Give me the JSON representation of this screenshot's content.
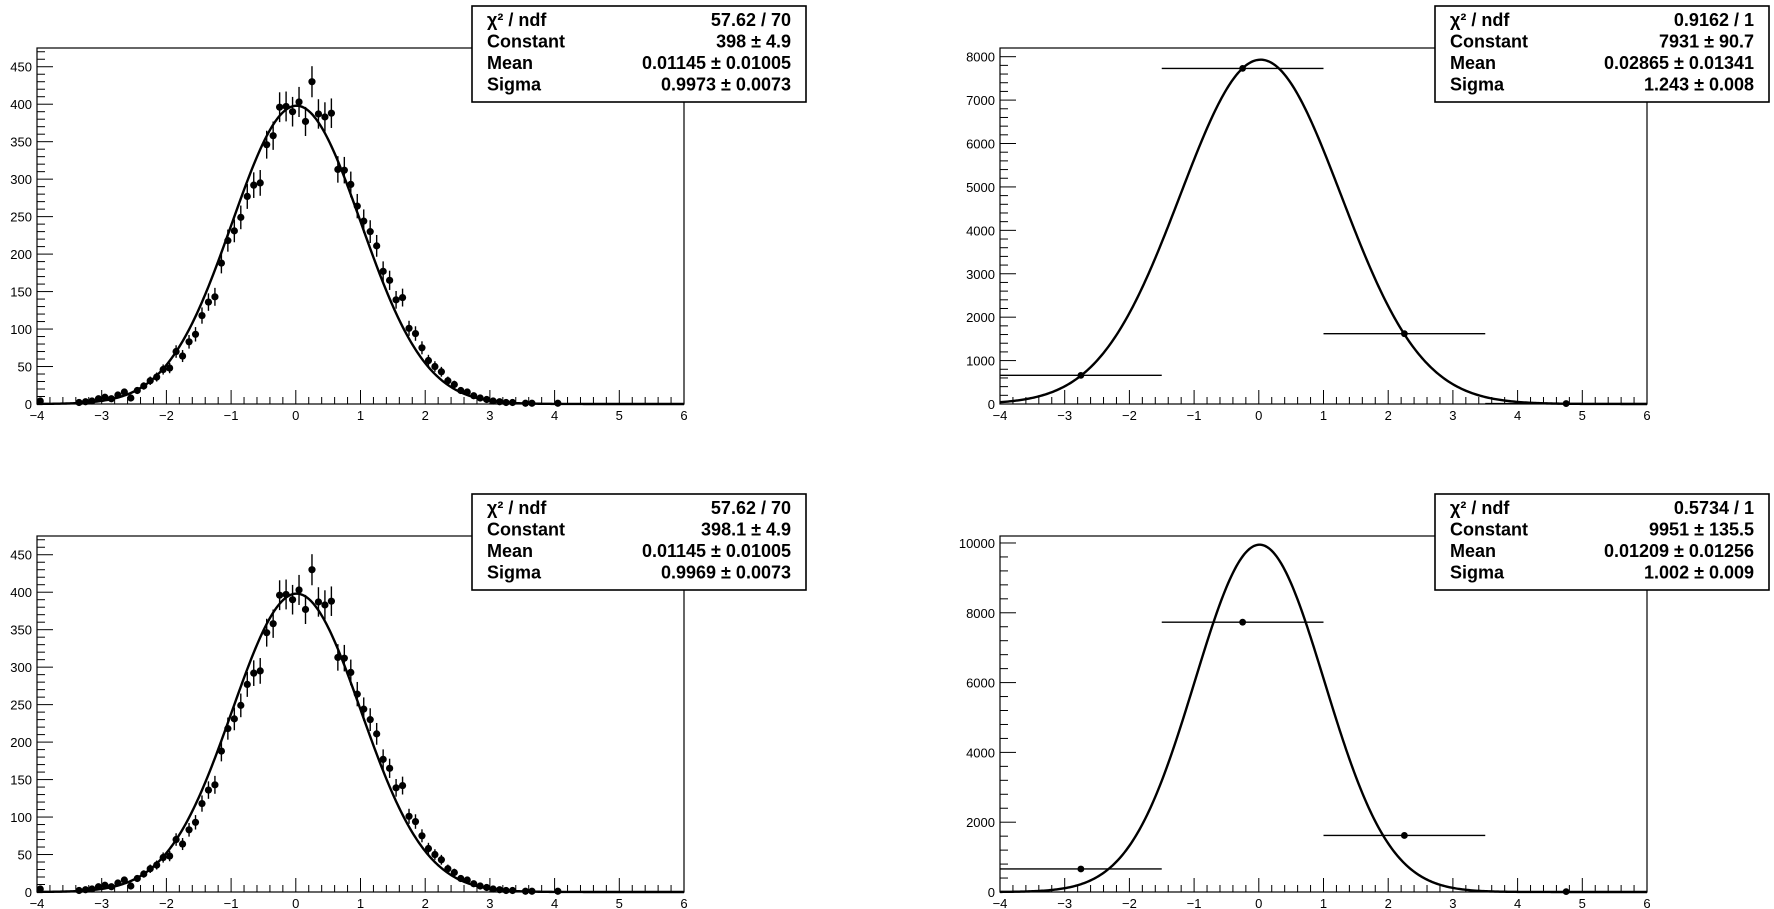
{
  "chart_data": [
    {
      "type": "scatter",
      "xlim": [
        -4,
        6
      ],
      "ylim": [
        0,
        475
      ],
      "xticks": [
        -4,
        -3,
        -2,
        -1,
        0,
        1,
        2,
        3,
        4,
        5,
        6
      ],
      "yticks": [
        0,
        50,
        100,
        150,
        200,
        250,
        300,
        350,
        400,
        450
      ],
      "fit": {
        "constant": 398,
        "mean": 0.01145,
        "sigma": 0.9973
      },
      "stats": [
        {
          "label": "χ² / ndf",
          "value": "57.62 / 70"
        },
        {
          "label": "Constant",
          "value": "398 ± 4.9"
        },
        {
          "label": "Mean",
          "value": "0.01145 ± 0.01005"
        },
        {
          "label": "Sigma",
          "value": "0.9973 ± 0.0073"
        }
      ],
      "points": [
        [
          -3.95,
          4
        ],
        [
          -3.35,
          2
        ],
        [
          -3.25,
          3
        ],
        [
          -3.15,
          4
        ],
        [
          -3.05,
          7
        ],
        [
          -2.95,
          9
        ],
        [
          -2.85,
          7
        ],
        [
          -2.75,
          12
        ],
        [
          -2.65,
          16
        ],
        [
          -2.55,
          8
        ],
        [
          -2.45,
          18
        ],
        [
          -2.35,
          24
        ],
        [
          -2.25,
          31
        ],
        [
          -2.15,
          36
        ],
        [
          -2.05,
          46
        ],
        [
          -1.95,
          48
        ],
        [
          -1.85,
          70
        ],
        [
          -1.75,
          64
        ],
        [
          -1.65,
          83
        ],
        [
          -1.55,
          93
        ],
        [
          -1.45,
          118
        ],
        [
          -1.35,
          136
        ],
        [
          -1.25,
          143
        ],
        [
          -1.15,
          188
        ],
        [
          -1.05,
          218
        ],
        [
          -0.95,
          231
        ],
        [
          -0.85,
          249
        ],
        [
          -0.75,
          277
        ],
        [
          -0.65,
          292
        ],
        [
          -0.55,
          295
        ],
        [
          -0.45,
          346
        ],
        [
          -0.35,
          358
        ],
        [
          -0.25,
          396
        ],
        [
          -0.15,
          397
        ],
        [
          -0.05,
          390
        ],
        [
          0.05,
          403
        ],
        [
          0.15,
          377
        ],
        [
          0.25,
          430
        ],
        [
          0.35,
          387
        ],
        [
          0.45,
          383
        ],
        [
          0.55,
          388
        ],
        [
          0.65,
          313
        ],
        [
          0.75,
          312
        ],
        [
          0.85,
          293
        ],
        [
          0.95,
          264
        ],
        [
          1.05,
          244
        ],
        [
          1.15,
          230
        ],
        [
          1.25,
          211
        ],
        [
          1.35,
          177
        ],
        [
          1.45,
          165
        ],
        [
          1.55,
          139
        ],
        [
          1.65,
          142
        ],
        [
          1.75,
          101
        ],
        [
          1.85,
          94
        ],
        [
          1.95,
          75
        ],
        [
          2.05,
          58
        ],
        [
          2.15,
          50
        ],
        [
          2.25,
          43
        ],
        [
          2.35,
          31
        ],
        [
          2.45,
          26
        ],
        [
          2.55,
          18
        ],
        [
          2.65,
          16
        ],
        [
          2.75,
          11
        ],
        [
          2.85,
          8
        ],
        [
          2.95,
          6
        ],
        [
          3.05,
          4
        ],
        [
          3.15,
          3
        ],
        [
          3.25,
          2
        ],
        [
          3.35,
          2
        ],
        [
          3.55,
          1
        ],
        [
          3.65,
          1
        ],
        [
          4.05,
          1
        ]
      ]
    },
    {
      "type": "scatter",
      "xlim": [
        -4,
        6
      ],
      "ylim": [
        0,
        8200
      ],
      "xticks": [
        -4,
        -3,
        -2,
        -1,
        0,
        1,
        2,
        3,
        4,
        5,
        6
      ],
      "yticks": [
        0,
        1000,
        2000,
        3000,
        4000,
        5000,
        6000,
        7000,
        8000
      ],
      "fit": {
        "constant": 7931,
        "mean": 0.02865,
        "sigma": 1.243
      },
      "stats": [
        {
          "label": "χ² / ndf",
          "value": "0.9162 / 1"
        },
        {
          "label": "Constant",
          "value": "7931 ± 90.7"
        },
        {
          "label": "Mean",
          "value": "0.02865 ± 0.01341"
        },
        {
          "label": "Sigma",
          "value": "1.243 ± 0.008"
        }
      ],
      "points": [
        {
          "x": -2.75,
          "y": 660,
          "xlo": -4.0,
          "xhi": -1.5
        },
        {
          "x": -0.25,
          "y": 7730,
          "xlo": -1.5,
          "xhi": 1.0
        },
        {
          "x": 2.25,
          "y": 1620,
          "xlo": 1.0,
          "xhi": 3.5
        },
        {
          "x": 4.75,
          "y": 10,
          "xlo": 3.5,
          "xhi": 6.0
        }
      ]
    },
    {
      "type": "scatter",
      "xlim": [
        -4,
        6
      ],
      "ylim": [
        0,
        475
      ],
      "xticks": [
        -4,
        -3,
        -2,
        -1,
        0,
        1,
        2,
        3,
        4,
        5,
        6
      ],
      "yticks": [
        0,
        50,
        100,
        150,
        200,
        250,
        300,
        350,
        400,
        450
      ],
      "fit": {
        "constant": 398.1,
        "mean": 0.01145,
        "sigma": 0.9969
      },
      "stats": [
        {
          "label": "χ² / ndf",
          "value": "57.62 / 70"
        },
        {
          "label": "Constant",
          "value": "398.1 ± 4.9"
        },
        {
          "label": "Mean",
          "value": "0.01145 ± 0.01005"
        },
        {
          "label": "Sigma",
          "value": "0.9969 ± 0.0073"
        }
      ],
      "points": [
        [
          -3.95,
          4
        ],
        [
          -3.35,
          2
        ],
        [
          -3.25,
          3
        ],
        [
          -3.15,
          4
        ],
        [
          -3.05,
          7
        ],
        [
          -2.95,
          9
        ],
        [
          -2.85,
          7
        ],
        [
          -2.75,
          12
        ],
        [
          -2.65,
          16
        ],
        [
          -2.55,
          8
        ],
        [
          -2.45,
          18
        ],
        [
          -2.35,
          24
        ],
        [
          -2.25,
          31
        ],
        [
          -2.15,
          36
        ],
        [
          -2.05,
          46
        ],
        [
          -1.95,
          48
        ],
        [
          -1.85,
          70
        ],
        [
          -1.75,
          64
        ],
        [
          -1.65,
          83
        ],
        [
          -1.55,
          93
        ],
        [
          -1.45,
          118
        ],
        [
          -1.35,
          136
        ],
        [
          -1.25,
          143
        ],
        [
          -1.15,
          188
        ],
        [
          -1.05,
          218
        ],
        [
          -0.95,
          231
        ],
        [
          -0.85,
          249
        ],
        [
          -0.75,
          277
        ],
        [
          -0.65,
          292
        ],
        [
          -0.55,
          295
        ],
        [
          -0.45,
          346
        ],
        [
          -0.35,
          358
        ],
        [
          -0.25,
          396
        ],
        [
          -0.15,
          397
        ],
        [
          -0.05,
          390
        ],
        [
          0.05,
          403
        ],
        [
          0.15,
          377
        ],
        [
          0.25,
          430
        ],
        [
          0.35,
          387
        ],
        [
          0.45,
          383
        ],
        [
          0.55,
          388
        ],
        [
          0.65,
          313
        ],
        [
          0.75,
          312
        ],
        [
          0.85,
          293
        ],
        [
          0.95,
          264
        ],
        [
          1.05,
          244
        ],
        [
          1.15,
          230
        ],
        [
          1.25,
          211
        ],
        [
          1.35,
          177
        ],
        [
          1.45,
          165
        ],
        [
          1.55,
          139
        ],
        [
          1.65,
          142
        ],
        [
          1.75,
          101
        ],
        [
          1.85,
          94
        ],
        [
          1.95,
          75
        ],
        [
          2.05,
          58
        ],
        [
          2.15,
          50
        ],
        [
          2.25,
          43
        ],
        [
          2.35,
          31
        ],
        [
          2.45,
          26
        ],
        [
          2.55,
          18
        ],
        [
          2.65,
          16
        ],
        [
          2.75,
          11
        ],
        [
          2.85,
          8
        ],
        [
          2.95,
          6
        ],
        [
          3.05,
          4
        ],
        [
          3.15,
          3
        ],
        [
          3.25,
          2
        ],
        [
          3.35,
          2
        ],
        [
          3.55,
          1
        ],
        [
          3.65,
          1
        ],
        [
          4.05,
          1
        ]
      ]
    },
    {
      "type": "scatter",
      "xlim": [
        -4,
        6
      ],
      "ylim": [
        0,
        10200
      ],
      "xticks": [
        -4,
        -3,
        -2,
        -1,
        0,
        1,
        2,
        3,
        4,
        5,
        6
      ],
      "yticks": [
        0,
        2000,
        4000,
        6000,
        8000,
        10000
      ],
      "fit": {
        "constant": 9951,
        "mean": 0.01209,
        "sigma": 1.002
      },
      "stats": [
        {
          "label": "χ² / ndf",
          "value": "0.5734 / 1"
        },
        {
          "label": "Constant",
          "value": "9951 ± 135.5"
        },
        {
          "label": "Mean",
          "value": "0.01209 ± 0.01256"
        },
        {
          "label": "Sigma",
          "value": "1.002 ± 0.009"
        }
      ],
      "points": [
        {
          "x": -2.75,
          "y": 660,
          "xlo": -4.0,
          "xhi": -1.5
        },
        {
          "x": -0.25,
          "y": 7730,
          "xlo": -1.5,
          "xhi": 1.0
        },
        {
          "x": 2.25,
          "y": 1620,
          "xlo": 1.0,
          "xhi": 3.5
        },
        {
          "x": 4.75,
          "y": 10,
          "xlo": 3.5,
          "xhi": 6.0
        }
      ]
    }
  ]
}
